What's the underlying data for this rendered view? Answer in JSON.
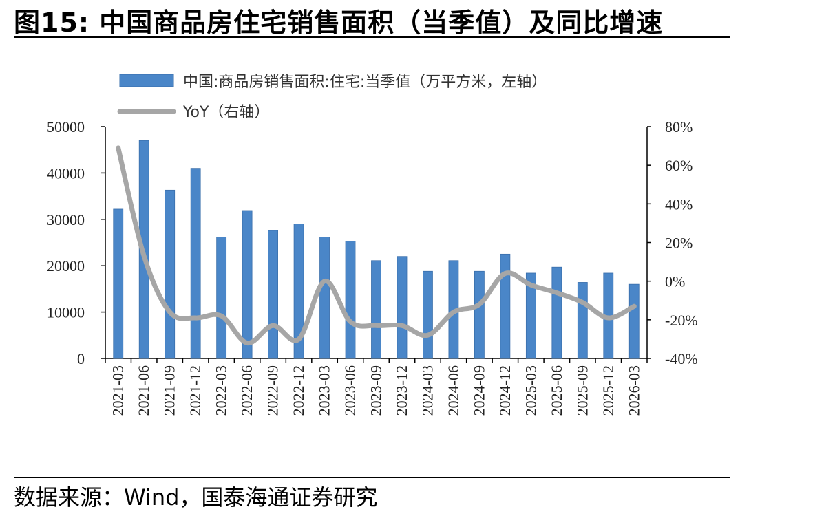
{
  "figure": {
    "title": "图15:  中国商品房住宅销售面积（当季值）及同比增速",
    "source": "数据来源：Wind，国泰海通证券研究"
  },
  "chart_data": {
    "type": "bar+line",
    "categories": [
      "2021-03",
      "2021-06",
      "2021-09",
      "2021-12",
      "2022-03",
      "2022-06",
      "2022-09",
      "2022-12",
      "2023-03",
      "2023-06",
      "2023-09",
      "2023-12",
      "2024-03",
      "2024-06",
      "2024-09",
      "2024-12",
      "2025-03",
      "2025-06",
      "2025-09",
      "2025-12",
      "2026-03"
    ],
    "series": [
      {
        "name": "中国:商品房销售面积:住宅:当季值（万平方米，左轴）",
        "kind": "bar",
        "axis": "left",
        "color": "#4a86c8",
        "values": [
          32200,
          47000,
          36300,
          41000,
          26200,
          31900,
          27600,
          29000,
          26200,
          25300,
          21100,
          22000,
          18800,
          21100,
          18800,
          22500,
          18400,
          19700,
          16400,
          18400,
          16000
        ]
      },
      {
        "name": "YoY（右轴）",
        "kind": "line",
        "axis": "right",
        "color": "#a6a6a6",
        "values": [
          0.69,
          0.13,
          -0.16,
          -0.19,
          -0.18,
          -0.32,
          -0.23,
          -0.3,
          0.0,
          -0.21,
          -0.23,
          -0.23,
          -0.28,
          -0.16,
          -0.12,
          0.04,
          -0.02,
          -0.06,
          -0.11,
          -0.19,
          -0.13
        ]
      }
    ],
    "y_left": {
      "min": 0,
      "max": 50000,
      "ticks": [
        "0",
        "10000",
        "20000",
        "30000",
        "40000",
        "50000"
      ]
    },
    "y_right": {
      "min": -0.4,
      "max": 0.8,
      "ticks": [
        "-40%",
        "-20%",
        "0%",
        "20%",
        "40%",
        "60%",
        "80%"
      ]
    },
    "legend_position": "top-center",
    "grid": false
  }
}
